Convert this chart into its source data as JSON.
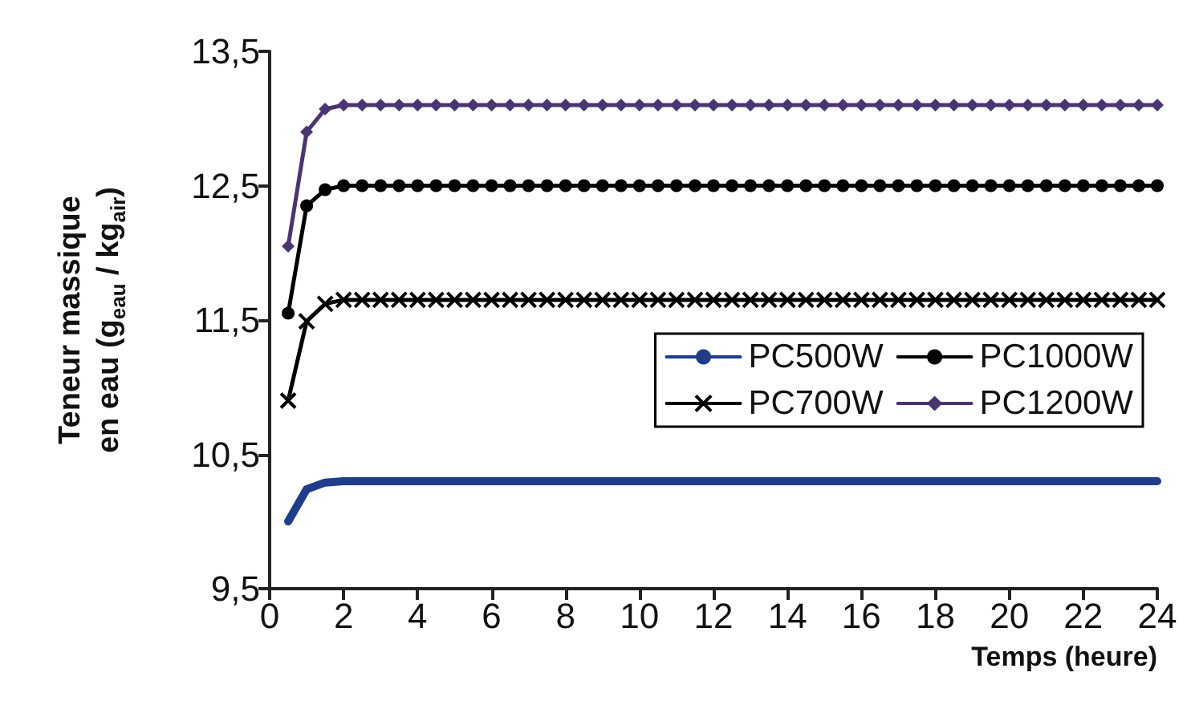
{
  "chart_data": {
    "type": "line",
    "xlabel": "Temps (heure)",
    "ylabel": "Teneur massique\nen eau (g$_{eau}$ / kg$_{air}$)",
    "x": [
      0.5,
      1,
      1.5,
      2,
      2.5,
      3,
      3.5,
      4,
      4.5,
      5,
      5.5,
      6,
      6.5,
      7,
      7.5,
      8,
      8.5,
      9,
      9.5,
      10,
      10.5,
      11,
      11.5,
      12,
      12.5,
      13,
      13.5,
      14,
      14.5,
      15,
      15.5,
      16,
      16.5,
      17,
      17.5,
      18,
      18.5,
      19,
      19.5,
      20,
      20.5,
      21,
      21.5,
      22,
      22.5,
      23,
      23.5,
      24
    ],
    "series": [
      {
        "name": "PC500W",
        "color": "#1f3d8a",
        "marker": "none",
        "values": [
          10.0,
          10.24,
          10.29,
          10.3,
          10.3,
          10.3,
          10.3,
          10.3,
          10.3,
          10.3,
          10.3,
          10.3,
          10.3,
          10.3,
          10.3,
          10.3,
          10.3,
          10.3,
          10.3,
          10.3,
          10.3,
          10.3,
          10.3,
          10.3,
          10.3,
          10.3,
          10.3,
          10.3,
          10.3,
          10.3,
          10.3,
          10.3,
          10.3,
          10.3,
          10.3,
          10.3,
          10.3,
          10.3,
          10.3,
          10.3,
          10.3,
          10.3,
          10.3,
          10.3,
          10.3,
          10.3,
          10.3,
          10.3
        ]
      },
      {
        "name": "PC1000W",
        "color": "#000000",
        "marker": "circle",
        "values": [
          11.55,
          12.35,
          12.47,
          12.5,
          12.5,
          12.5,
          12.5,
          12.5,
          12.5,
          12.5,
          12.5,
          12.5,
          12.5,
          12.5,
          12.5,
          12.5,
          12.5,
          12.5,
          12.5,
          12.5,
          12.5,
          12.5,
          12.5,
          12.5,
          12.5,
          12.5,
          12.5,
          12.5,
          12.5,
          12.5,
          12.5,
          12.5,
          12.5,
          12.5,
          12.5,
          12.5,
          12.5,
          12.5,
          12.5,
          12.5,
          12.5,
          12.5,
          12.5,
          12.5,
          12.5,
          12.5,
          12.5,
          12.5
        ]
      },
      {
        "name": "PC700W",
        "color": "#000000",
        "marker": "cross",
        "values": [
          10.9,
          11.49,
          11.62,
          11.65,
          11.65,
          11.65,
          11.65,
          11.65,
          11.65,
          11.65,
          11.65,
          11.65,
          11.65,
          11.65,
          11.65,
          11.65,
          11.65,
          11.65,
          11.65,
          11.65,
          11.65,
          11.65,
          11.65,
          11.65,
          11.65,
          11.65,
          11.65,
          11.65,
          11.65,
          11.65,
          11.65,
          11.65,
          11.65,
          11.65,
          11.65,
          11.65,
          11.65,
          11.65,
          11.65,
          11.65,
          11.65,
          11.65,
          11.65,
          11.65,
          11.65,
          11.65,
          11.65,
          11.65
        ]
      },
      {
        "name": "PC1200W",
        "color": "#4a3472",
        "marker": "diamond",
        "values": [
          12.05,
          12.9,
          13.07,
          13.1,
          13.1,
          13.1,
          13.1,
          13.1,
          13.1,
          13.1,
          13.1,
          13.1,
          13.1,
          13.1,
          13.1,
          13.1,
          13.1,
          13.1,
          13.1,
          13.1,
          13.1,
          13.1,
          13.1,
          13.1,
          13.1,
          13.1,
          13.1,
          13.1,
          13.1,
          13.1,
          13.1,
          13.1,
          13.1,
          13.1,
          13.1,
          13.1,
          13.1,
          13.1,
          13.1,
          13.1,
          13.1,
          13.1,
          13.1,
          13.1,
          13.1,
          13.1,
          13.1,
          13.1
        ]
      }
    ],
    "xlim": [
      0,
      24
    ],
    "xticks": [
      0,
      2,
      4,
      6,
      8,
      10,
      12,
      14,
      16,
      18,
      20,
      22,
      24
    ],
    "ylim": [
      9.5,
      13.5
    ],
    "yticks": [
      {
        "value": 9.5,
        "label": "9,5"
      },
      {
        "value": 10.5,
        "label": "10,5"
      },
      {
        "value": 11.5,
        "label": "11,5"
      },
      {
        "value": 12.5,
        "label": "12,5"
      },
      {
        "value": 13.5,
        "label": "13,5"
      }
    ],
    "grid": false,
    "legend": "right",
    "line_style": "solid"
  }
}
